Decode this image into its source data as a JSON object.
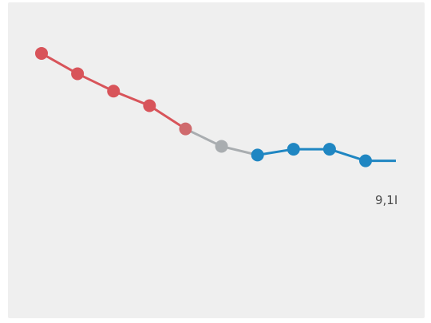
{
  "chart_data": {
    "type": "line",
    "title": "",
    "xlabel": "",
    "ylabel": "",
    "x": [
      1,
      2,
      3,
      4,
      5,
      6,
      7,
      8,
      9,
      10
    ],
    "ylim": [
      0,
      10
    ],
    "grid": false,
    "legend": "none",
    "series": [
      {
        "values": [
          8.6,
          7.9,
          7.3,
          6.8,
          6.0,
          5.4,
          5.1,
          5.3,
          5.3,
          4.9
        ],
        "point_colors": [
          "#d8545a",
          "#d8545a",
          "#d8545a",
          "#d8545a",
          "#cf6a6d",
          "#a9adb0",
          "#1f86c2",
          "#1f86c2",
          "#1f86c2",
          "#1f86c2"
        ]
      }
    ],
    "end_label": "9,1I",
    "colors": {
      "high": "#d8545a",
      "mid": "#a9adb0",
      "low": "#1f86c2"
    }
  }
}
